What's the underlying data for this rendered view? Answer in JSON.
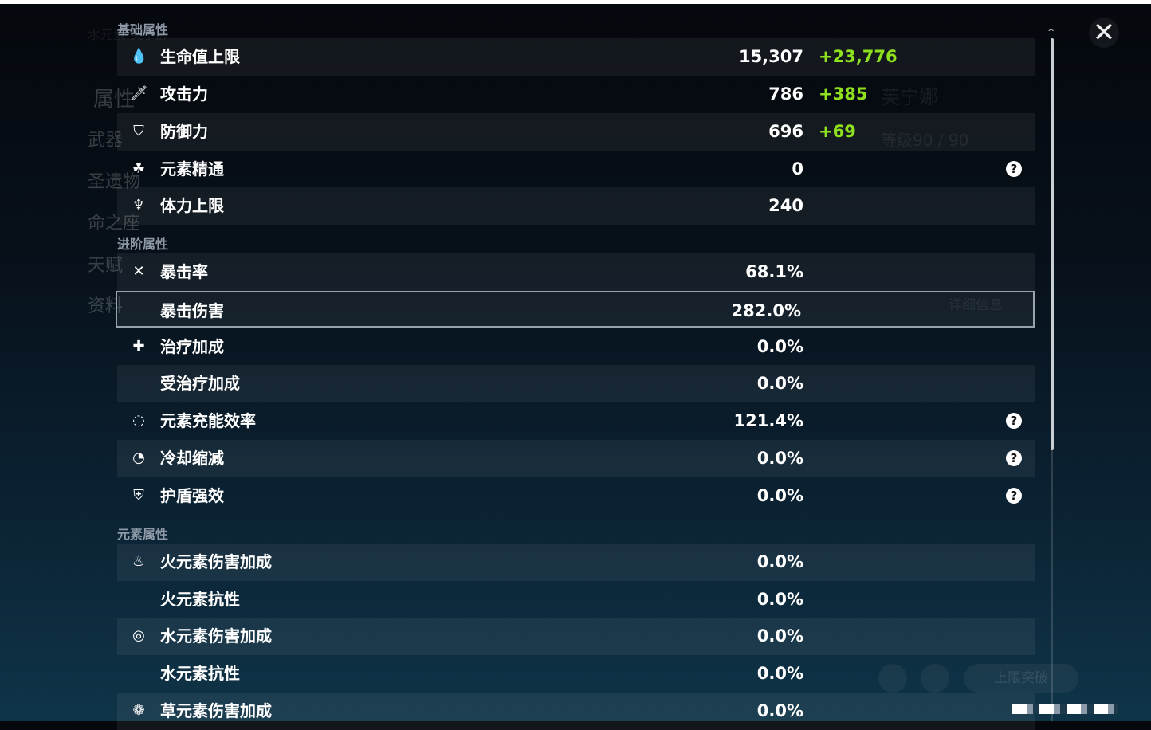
{
  "background": {
    "element_name": "水元素 芙宁娜",
    "menu": [
      "属性",
      "武器",
      "圣遗物",
      "命之座",
      "天赋",
      "资料"
    ],
    "character_name": "芙宁娜",
    "level": "等级90 / 90",
    "details_button": "详细信息",
    "breakthrough_button": "上限突破"
  },
  "sections": [
    {
      "title": "基础属性",
      "rows": [
        {
          "icon": "hp-drop-icon",
          "glyph": "💧",
          "label": "生命值上限",
          "value": "15,307",
          "bonus": "+23,776"
        },
        {
          "icon": "sword-icon",
          "glyph": "🗡",
          "label": "攻击力",
          "value": "786",
          "bonus": "+385"
        },
        {
          "icon": "shield-icon",
          "glyph": "⛉",
          "label": "防御力",
          "value": "696",
          "bonus": "+69"
        },
        {
          "icon": "elemental-mastery-icon",
          "glyph": "☘",
          "label": "元素精通",
          "value": "0",
          "help": "?"
        },
        {
          "icon": "stamina-icon",
          "glyph": "♆",
          "label": "体力上限",
          "value": "240"
        }
      ]
    },
    {
      "title": "进阶属性",
      "rows": [
        {
          "icon": "crit-rate-icon",
          "glyph": "✕",
          "label": "暴击率",
          "value": "68.1%"
        },
        {
          "icon": "",
          "glyph": "",
          "label": "暴击伤害",
          "value": "282.0%",
          "selected": true
        },
        {
          "icon": "healing-cross-icon",
          "glyph": "✚",
          "label": "治疗加成",
          "value": "0.0%"
        },
        {
          "icon": "",
          "glyph": "",
          "label": "受治疗加成",
          "value": "0.0%"
        },
        {
          "icon": "energy-recharge-icon",
          "glyph": "◌",
          "label": "元素充能效率",
          "value": "121.4%",
          "help": "?"
        },
        {
          "icon": "cooldown-icon",
          "glyph": "◔",
          "label": "冷却缩减",
          "value": "0.0%",
          "help": "?"
        },
        {
          "icon": "shield-strength-icon",
          "glyph": "⛨",
          "label": "护盾强效",
          "value": "0.0%",
          "help": "?"
        }
      ]
    },
    {
      "title": "元素属性",
      "rows": [
        {
          "icon": "pyro-icon",
          "glyph": "♨",
          "label": "火元素伤害加成",
          "value": "0.0%"
        },
        {
          "icon": "",
          "glyph": "",
          "label": "火元素抗性",
          "value": "0.0%"
        },
        {
          "icon": "hydro-icon",
          "glyph": "◎",
          "label": "水元素伤害加成",
          "value": "0.0%"
        },
        {
          "icon": "",
          "glyph": "",
          "label": "水元素抗性",
          "value": "0.0%"
        },
        {
          "icon": "dendro-icon",
          "glyph": "❁",
          "label": "草元素伤害加成",
          "value": "0.0%"
        }
      ]
    }
  ],
  "close_glyph": "✕",
  "colors": {
    "bonus": "#8fe01e",
    "selected_border": "#9aa3ab"
  }
}
